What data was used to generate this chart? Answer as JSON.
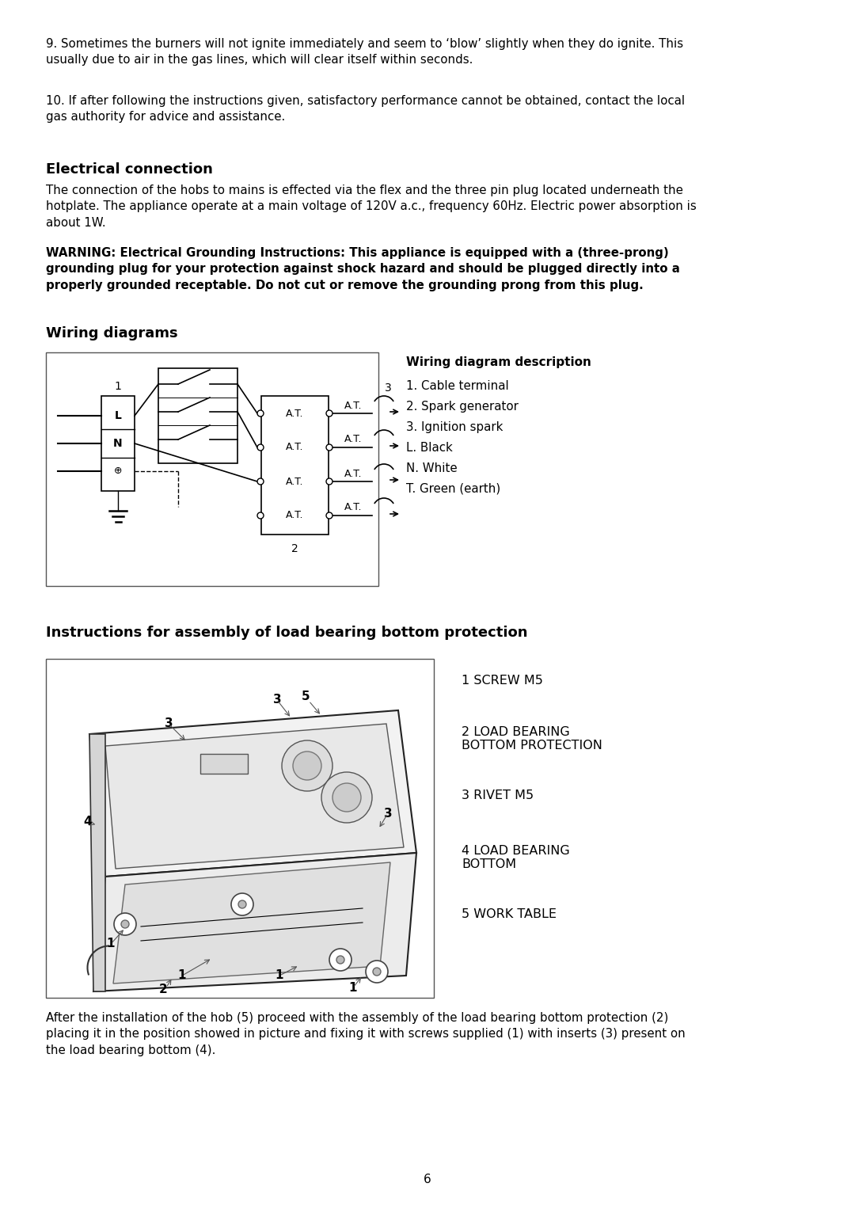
{
  "bg_color": "#ffffff",
  "text_color": "#000000",
  "page_number": "6",
  "para9": "9. Sometimes the burners will not ignite immediately and seem to ‘blow’ slightly when they do ignite. This\nusually due to air in the gas lines, which will clear itself within seconds.",
  "para10": "10. If after following the instructions given, satisfactory performance cannot be obtained, contact the local\ngas authority for advice and assistance.",
  "elec_title": "Electrical connection",
  "elec_para1": "The connection of the hobs to mains is effected via the flex and the three pin plug located underneath the\nhotplate. The appliance operate at a main voltage of 120V a.c., frequency 60Hz. Electric power absorption is\nabout 1W.",
  "elec_warning": "WARNING: Electrical Grounding Instructions: This appliance is equipped with a (three-prong)\ngrounding plug for your protection against shock hazard and should be plugged directly into a\nproperly grounded receptable. Do not cut or remove the grounding prong from this plug.",
  "wiring_title": "Wiring diagrams",
  "wiring_desc_title": "Wiring diagram description",
  "wiring_desc_items": [
    "1. Cable terminal",
    "2. Spark generator",
    "3. Ignition spark",
    "L. Black",
    "N. White",
    "T. Green (earth)"
  ],
  "assembly_title": "Instructions for assembly of load bearing bottom protection",
  "legend_items": [
    "1 SCREW M5",
    "2 LOAD BEARING\nBOTTOM PROTECTION",
    "3 RIVET M5",
    "4 LOAD BEARING\nBOTTOM",
    "5 WORK TABLE"
  ],
  "assembly_para": "After the installation of the hob (5) proceed with the assembly of the load bearing bottom protection (2)\nplacing it in the position showed in picture and fixing it with screws supplied (1) with inserts (3) present on\nthe load bearing bottom (4)."
}
